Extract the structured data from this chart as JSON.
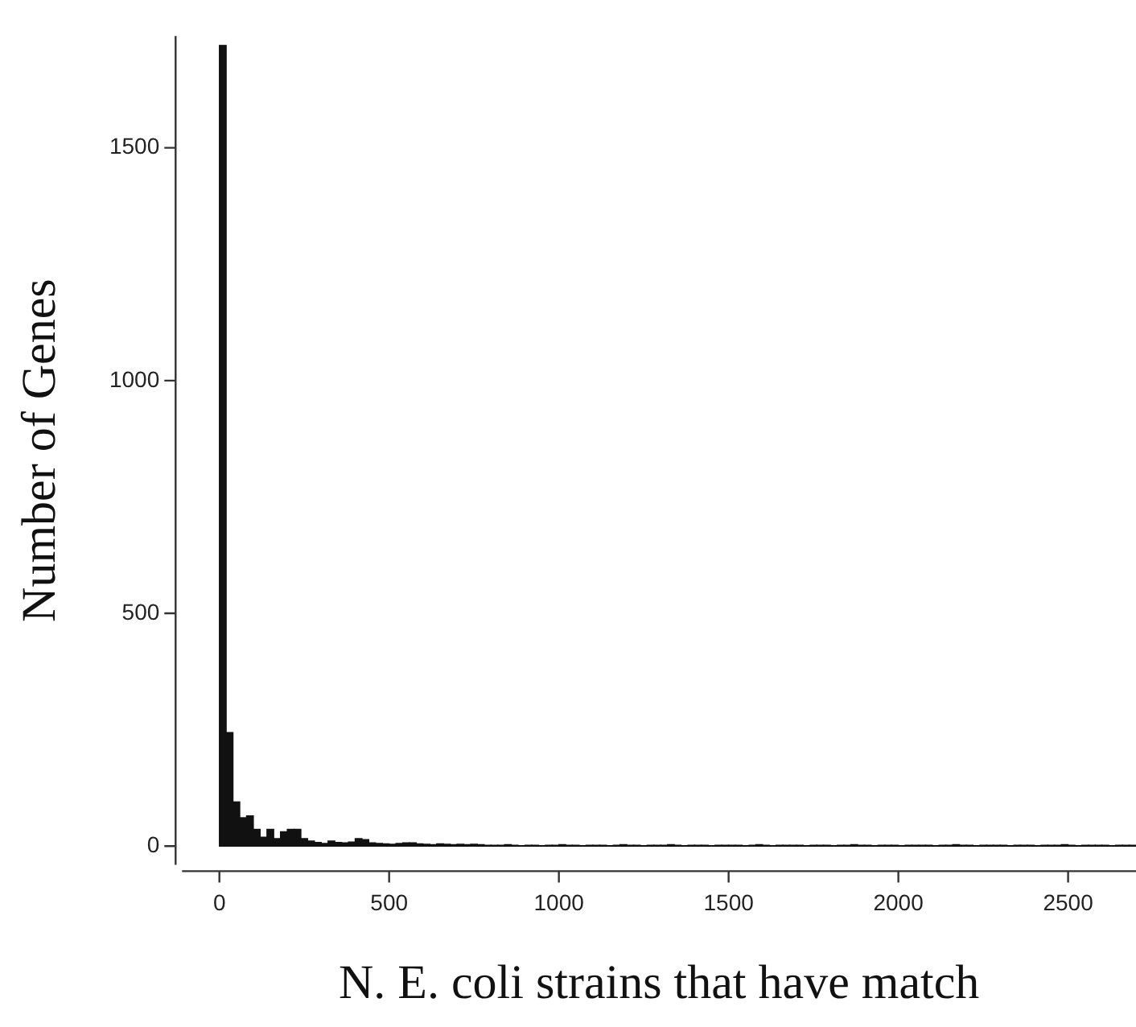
{
  "chart_data": {
    "type": "histogram",
    "xlabel": "N. E. coli strains that have match",
    "ylabel": "Number of Genes",
    "bins": [
      0,
      20,
      40,
      60,
      80,
      100,
      120,
      140,
      160,
      180,
      200,
      220,
      240,
      260,
      280,
      300,
      320,
      340,
      360,
      380,
      400,
      420,
      440,
      460,
      480,
      500,
      520,
      540,
      560,
      580,
      600,
      620,
      640,
      660,
      680,
      700,
      720,
      740,
      760,
      780,
      800,
      820,
      840,
      860,
      880,
      900,
      920,
      940,
      960,
      980,
      1000,
      1020,
      1040,
      1060,
      1080,
      1100,
      1120,
      1140,
      1160,
      1180,
      1200,
      1220,
      1240,
      1260,
      1280,
      1300,
      1320,
      1340,
      1360,
      1380,
      1400,
      1420,
      1440,
      1460,
      1480,
      1500,
      1520,
      1540,
      1560,
      1580,
      1600,
      1620,
      1640,
      1660,
      1680,
      1700,
      1720,
      1740,
      1760,
      1780,
      1800,
      1820,
      1840,
      1860,
      1880,
      1900,
      1920,
      1940,
      1960,
      1980,
      2000,
      2020,
      2040,
      2060,
      2080,
      2100,
      2120,
      2140,
      2160,
      2180,
      2200,
      2220,
      2240,
      2260,
      2280,
      2300,
      2320,
      2340,
      2360,
      2380,
      2400,
      2420,
      2440,
      2460,
      2480,
      2500,
      2520,
      2540,
      2560,
      2580,
      2600,
      2620,
      2640,
      2660,
      2680,
      2700
    ],
    "values": [
      1720,
      244,
      95,
      61,
      65,
      36,
      19,
      36,
      16,
      31,
      36,
      36,
      16,
      11,
      8,
      6,
      11,
      8,
      7,
      9,
      16,
      14,
      7,
      6,
      5,
      4,
      6,
      7,
      7,
      5,
      4,
      3,
      5,
      4,
      3,
      4,
      3,
      4,
      3,
      2,
      2,
      2,
      3,
      2,
      1,
      2,
      2,
      1,
      2,
      2,
      3,
      2,
      2,
      1,
      2,
      2,
      2,
      1,
      2,
      3,
      2,
      2,
      1,
      2,
      2,
      2,
      3,
      2,
      1,
      2,
      2,
      2,
      1,
      2,
      2,
      2,
      2,
      1,
      2,
      3,
      2,
      1,
      2,
      2,
      2,
      2,
      1,
      2,
      2,
      2,
      1,
      2,
      2,
      3,
      2,
      2,
      1,
      2,
      2,
      2,
      1,
      2,
      2,
      2,
      2,
      1,
      2,
      2,
      3,
      2,
      2,
      1,
      2,
      2,
      2,
      2,
      1,
      2,
      2,
      2,
      1,
      2,
      2,
      2,
      3,
      2,
      1,
      2,
      2,
      2,
      2,
      1,
      2,
      2,
      2
    ],
    "color": "#111111",
    "xlim": [
      -110,
      2700
    ],
    "ylim": [
      -40,
      1740
    ],
    "xticks": [
      0,
      500,
      1000,
      1500,
      2000,
      2500
    ],
    "yticks": [
      0,
      500,
      1000,
      1500
    ],
    "grid": false,
    "legend": false
  }
}
